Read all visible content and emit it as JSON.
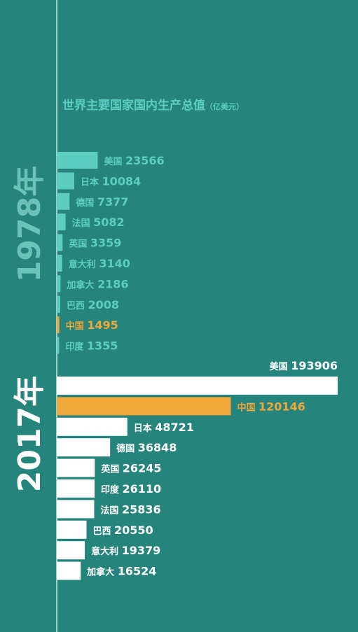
{
  "colors": {
    "background": "#25847c",
    "axis_line": "#cfe7e4",
    "bar_1978": "#5dcdc2",
    "label_1978": "#5dcdc2",
    "bar_2017": "#ffffff",
    "label_2017": "#ffffff",
    "highlight": "#f0a73a",
    "title": "#5dcdc2",
    "year_1978": "#6ac2b9",
    "year_2017": "#ffffff"
  },
  "chart_data": [
    {
      "type": "bar",
      "orientation": "horizontal",
      "title": "世界主要国家国内生产总值",
      "unit": "（亿美元）",
      "group_label": "1978年",
      "highlight": "中国",
      "categories": [
        "美国",
        "日本",
        "德国",
        "法国",
        "英国",
        "意大利",
        "加拿大",
        "巴西",
        "中国",
        "印度"
      ],
      "values": [
        23566,
        10084,
        7377,
        5082,
        3359,
        3140,
        2186,
        2008,
        1495,
        1355
      ]
    },
    {
      "type": "bar",
      "orientation": "horizontal",
      "group_label": "2017年",
      "highlight": "中国",
      "categories": [
        "美国",
        "中国",
        "日本",
        "德国",
        "英国",
        "印度",
        "法国",
        "巴西",
        "意大利",
        "加拿大"
      ],
      "values": [
        193906,
        120146,
        48721,
        36848,
        26245,
        26110,
        25836,
        20550,
        19379,
        16524
      ]
    }
  ]
}
